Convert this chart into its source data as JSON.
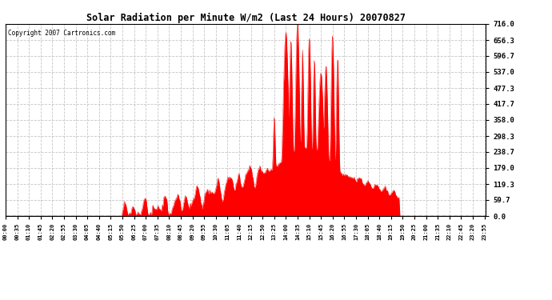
{
  "title": "Solar Radiation per Minute W/m2 (Last 24 Hours) 20070827",
  "copyright_text": "Copyright 2007 Cartronics.com",
  "fill_color": "#FF0000",
  "line_color": "#FF0000",
  "background_color": "#FFFFFF",
  "plot_bg_color": "#FFFFFF",
  "grid_color": "#C0C0C0",
  "ytick_labels": [
    0.0,
    59.7,
    119.3,
    179.0,
    238.7,
    298.3,
    358.0,
    417.7,
    477.3,
    537.0,
    596.7,
    656.3,
    716.0
  ],
  "ymax": 716.0,
  "ymin": 0.0,
  "num_points": 1440,
  "xtick_labels": [
    "00:00",
    "00:35",
    "01:10",
    "01:45",
    "02:20",
    "02:55",
    "03:30",
    "04:05",
    "04:40",
    "05:15",
    "05:50",
    "06:25",
    "07:00",
    "07:35",
    "08:10",
    "08:45",
    "09:20",
    "09:55",
    "10:30",
    "11:05",
    "11:40",
    "12:15",
    "12:50",
    "13:25",
    "14:00",
    "14:35",
    "15:10",
    "15:45",
    "16:20",
    "16:55",
    "17:30",
    "18:05",
    "18:40",
    "19:15",
    "19:50",
    "20:25",
    "21:00",
    "21:35",
    "22:10",
    "22:45",
    "23:20",
    "23:55"
  ]
}
